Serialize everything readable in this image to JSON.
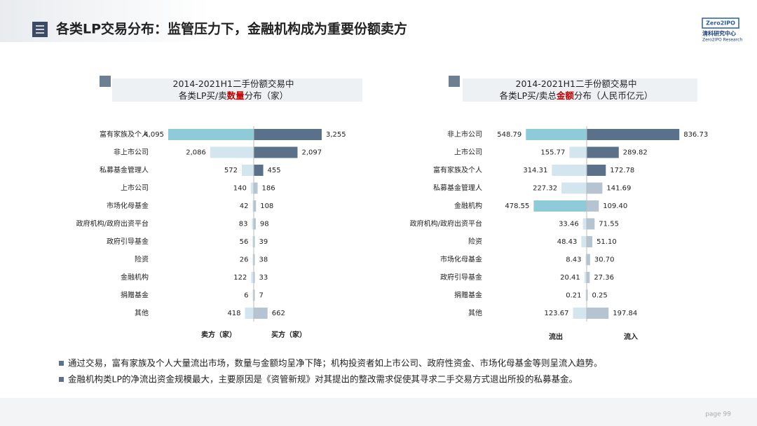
{
  "header": {
    "title": "各类LP交易分布：监管压力下，金融机构成为重要份额卖方",
    "logo": {
      "badge": "Zero2IPO",
      "name": "清科研究中心",
      "sub": "Zero2IPO Research"
    }
  },
  "chart_data": [
    {
      "type": "butterfly",
      "title": [
        [
          "2014-2021H1二手份额交易中"
        ],
        [
          "各类LP买/卖",
          {
            "text": "数量",
            "color": "#c00000"
          },
          "分布（家）"
        ]
      ],
      "categories": [
        "富有家族及个人",
        "非上市公司",
        "私募基金管理人",
        "上市公司",
        "市场化母基金",
        "政府机构/政府出资平台",
        "政府引导基金",
        "险资",
        "金融机构",
        "捐赠基金",
        "其他"
      ],
      "series": [
        {
          "name": "卖方（家）",
          "side": "left",
          "values": [
            4095,
            2086,
            572,
            140,
            42,
            83,
            56,
            26,
            122,
            6,
            418
          ],
          "value_labels": [
            "4,095",
            "2,086",
            "572",
            "140",
            "42",
            "83",
            "56",
            "26",
            "122",
            "6",
            "418"
          ],
          "colors": [
            "#8ecbd8",
            "#d3e5ee",
            "#d3e5ee",
            "#d3e5ee",
            "#d3e5ee",
            "#d3e5ee",
            "#d3e5ee",
            "#d3e5ee",
            "#d3e5ee",
            "#d3e5ee",
            "#d3e5ee"
          ]
        },
        {
          "name": "买方（家）",
          "side": "right",
          "values": [
            3255,
            2097,
            455,
            186,
            108,
            98,
            39,
            38,
            33,
            7,
            662
          ],
          "value_labels": [
            "3,255",
            "2,097",
            "455",
            "186",
            "108",
            "98",
            "39",
            "38",
            "33",
            "7",
            "662"
          ],
          "colors": [
            "#5b7189",
            "#5b7189",
            "#5b7189",
            "#b6c4d2",
            "#b6c4d2",
            "#b6c4d2",
            "#b6c4d2",
            "#b6c4d2",
            "#b6c4d2",
            "#b6c4d2",
            "#b6c4d2"
          ]
        }
      ]
    },
    {
      "type": "butterfly",
      "title": [
        [
          "2014-2021H1二手份额交易中"
        ],
        [
          "各类LP买/卖总",
          {
            "text": "金额",
            "color": "#c00000"
          },
          "分布（人民币亿元）"
        ]
      ],
      "categories": [
        "非上市公司",
        "上市公司",
        "富有家族及个人",
        "私募基金管理人",
        "金融机构",
        "政府机构/政府出资平台",
        "险资",
        "市场化母基金",
        "政府引导基金",
        "捐赠基金",
        "其他"
      ],
      "series": [
        {
          "name": "流出",
          "side": "left",
          "values": [
            548.79,
            155.77,
            314.31,
            227.32,
            478.55,
            33.46,
            48.43,
            8.43,
            20.41,
            0.21,
            123.67
          ],
          "value_labels": [
            "548.79",
            "155.77",
            "314.31",
            "227.32",
            "478.55",
            "33.46",
            "48.43",
            "8.43",
            "20.41",
            "0.21",
            "123.67"
          ],
          "colors": [
            "#8ecbd8",
            "#d3e5ee",
            "#d3e5ee",
            "#d3e5ee",
            "#8ecbd8",
            "#d3e5ee",
            "#d3e5ee",
            "#d3e5ee",
            "#d3e5ee",
            "#d3e5ee",
            "#d3e5ee"
          ]
        },
        {
          "name": "流入",
          "side": "right",
          "values": [
            836.73,
            289.82,
            172.78,
            141.69,
            109.4,
            71.55,
            51.1,
            30.7,
            27.36,
            0.25,
            197.84
          ],
          "value_labels": [
            "836.73",
            "289.82",
            "172.78",
            "141.69",
            "109.40",
            "71.55",
            "51.10",
            "30.70",
            "27.36",
            "0.25",
            "197.84"
          ],
          "colors": [
            "#5b7189",
            "#5b7189",
            "#5b7189",
            "#b6c4d2",
            "#b6c4d2",
            "#b6c4d2",
            "#b6c4d2",
            "#b6c4d2",
            "#b6c4d2",
            "#b6c4d2",
            "#b6c4d2"
          ]
        }
      ]
    }
  ],
  "bullets": [
    "通过交易，富有家族及个人大量流出市场，数量与金额均呈净下降；机构投资者如上市公司、政府性资金、市场化母基金等则呈流入趋势。",
    "金融机构类LP的净流出资金规模最大，主要原因是《资管新规》对其提出的整改需求促使其寻求二手交易方式退出所投的私募基金。"
  ],
  "footer": {
    "page": "page  99"
  }
}
